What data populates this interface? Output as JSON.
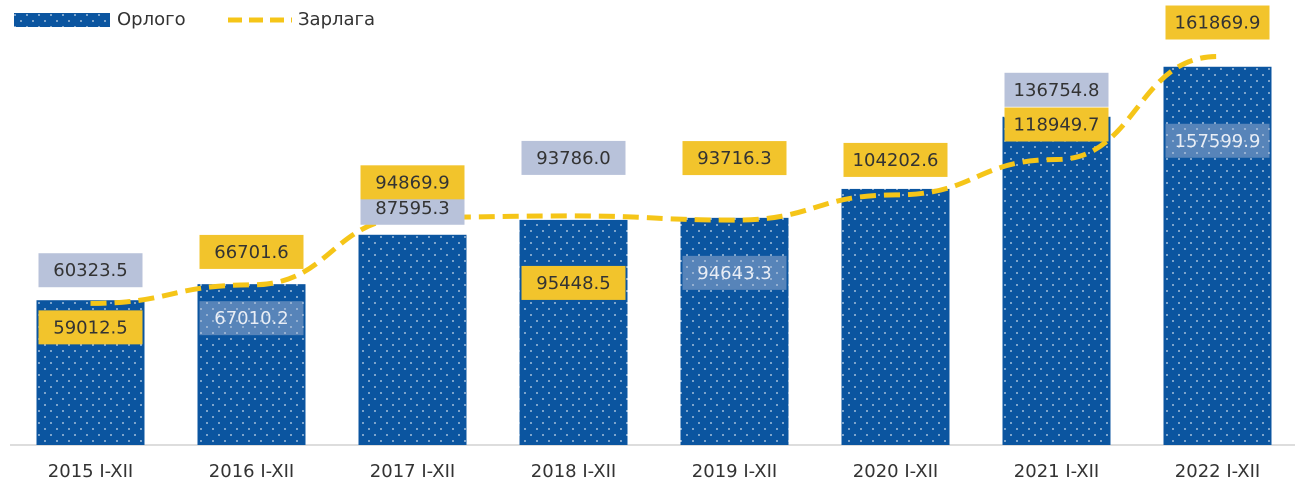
{
  "chart_data": {
    "type": "bar",
    "categories": [
      "2015 I-XII",
      "2016  I-XII",
      "2017 I-XII",
      "2018 I-XII",
      "2019 I-XII",
      "2020 I-XII",
      "2021 I-XII",
      "2022 I-XII"
    ],
    "series": [
      {
        "name": "Орлого",
        "type": "bar",
        "color": "#0b55a0",
        "values": [
          60323.5,
          67010.2,
          87595.3,
          93786.0,
          94643.3,
          106700,
          136754.8,
          157599.9
        ],
        "value_labels": [
          "60323.5",
          "67010.2",
          "87595.3",
          "93786.0",
          "94643.3",
          null,
          "136754.8",
          "157599.9"
        ]
      },
      {
        "name": "Зарлага",
        "type": "line",
        "color": "#f5c518",
        "values": [
          59012.5,
          66701.6,
          94869.9,
          95448.5,
          93716.3,
          104202.6,
          118949.7,
          161869.9
        ],
        "value_labels": [
          "59012.5",
          "66701.6",
          "94869.9",
          "95448.5",
          "93716.3",
          "104202.6",
          "118949.7",
          "161869.9"
        ]
      }
    ],
    "ylim": [
      0,
      170000
    ]
  }
}
